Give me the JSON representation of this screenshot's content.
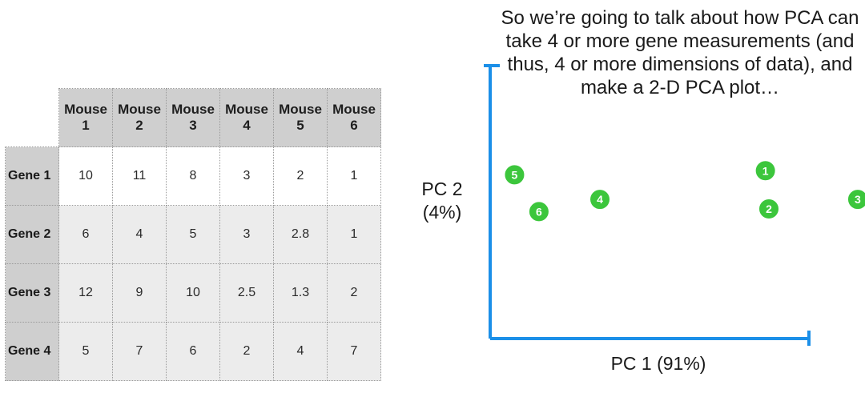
{
  "table": {
    "columns": [
      "Mouse 1",
      "Mouse 2",
      "Mouse 3",
      "Mouse 4",
      "Mouse 5",
      "Mouse 6"
    ],
    "rows": [
      {
        "label": "Gene 1",
        "values": [
          "10",
          "11",
          "8",
          "3",
          "2",
          "1"
        ]
      },
      {
        "label": "Gene 2",
        "values": [
          "6",
          "4",
          "5",
          "3",
          "2.8",
          "1"
        ]
      },
      {
        "label": "Gene 3",
        "values": [
          "12",
          "9",
          "10",
          "2.5",
          "1.3",
          "2"
        ]
      },
      {
        "label": "Gene 4",
        "values": [
          "5",
          "7",
          "6",
          "2",
          "4",
          "7"
        ]
      }
    ]
  },
  "caption": "So we’re going to talk about how PCA can take 4 or more gene measurements (and thus, 4 or more dimensions of data), and make a 2-D PCA plot…",
  "colors": {
    "axis": "#1b8fe8",
    "point": "#3cc63c",
    "header_bg": "#cfcfcf"
  },
  "chart_data": {
    "type": "scatter",
    "xlabel": "PC 1 (91%)",
    "ylabel_line1": "PC 2",
    "ylabel_line2": "(4%)",
    "grid": false,
    "points": [
      {
        "label": "1",
        "x": 0.79,
        "y": 0.615
      },
      {
        "label": "2",
        "x": 0.8,
        "y": 0.475
      },
      {
        "label": "3",
        "x": 1.055,
        "y": 0.51
      },
      {
        "label": "4",
        "x": 0.315,
        "y": 0.51
      },
      {
        "label": "5",
        "x": 0.07,
        "y": 0.6
      },
      {
        "label": "6",
        "x": 0.14,
        "y": 0.465
      }
    ]
  }
}
